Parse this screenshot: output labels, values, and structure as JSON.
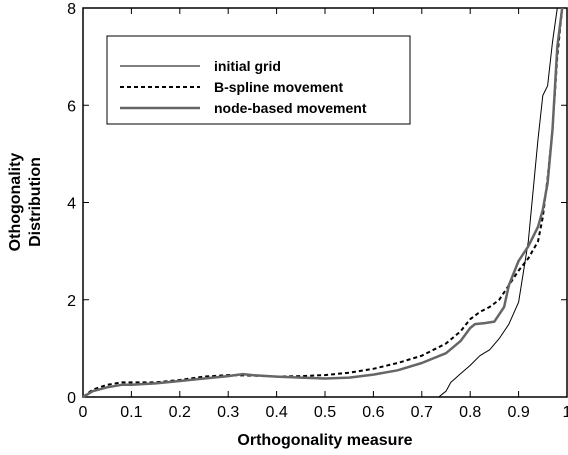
{
  "chart_data": {
    "type": "line",
    "title": "",
    "xlabel": "Orthogonality measure",
    "ylabel_lines": [
      "Othogonality",
      "Distribution"
    ],
    "xlim": [
      0,
      1
    ],
    "ylim": [
      0,
      8
    ],
    "x_ticks": [
      0,
      0.1,
      0.2,
      0.3,
      0.4,
      0.5,
      0.6,
      0.7,
      0.8,
      0.9,
      1
    ],
    "x_tick_labels": [
      "0",
      "0.1",
      "0.2",
      "0.3",
      "0.4",
      "0.5",
      "0.6",
      "0.7",
      "0.8",
      "0.9",
      "1"
    ],
    "y_ticks": [
      0,
      2,
      4,
      6,
      8
    ],
    "y_tick_labels": [
      "0",
      "2",
      "4",
      "6",
      "8"
    ],
    "grid": false,
    "legend_position": "top-left",
    "series": [
      {
        "name": "initial grid",
        "style": "thin-solid",
        "color": "#000000",
        "x": [
          0.735,
          0.75,
          0.76,
          0.78,
          0.8,
          0.82,
          0.84,
          0.86,
          0.88,
          0.9,
          0.92,
          0.94,
          0.95,
          0.96,
          0.97,
          0.98,
          0.99
        ],
        "y": [
          0.0,
          0.12,
          0.3,
          0.48,
          0.65,
          0.85,
          0.97,
          1.2,
          1.5,
          1.95,
          3.2,
          5.3,
          6.2,
          6.4,
          7.3,
          8.0,
          8.0
        ]
      },
      {
        "name": "B-spline movement",
        "style": "dashed",
        "color": "#000000",
        "x": [
          0,
          0.02,
          0.05,
          0.08,
          0.1,
          0.15,
          0.2,
          0.25,
          0.3,
          0.35,
          0.4,
          0.45,
          0.5,
          0.55,
          0.6,
          0.65,
          0.7,
          0.75,
          0.78,
          0.8,
          0.82,
          0.84,
          0.86,
          0.88,
          0.9,
          0.92,
          0.94,
          0.95,
          0.96,
          0.97,
          0.98,
          0.99
        ],
        "y": [
          0.0,
          0.15,
          0.25,
          0.3,
          0.3,
          0.3,
          0.35,
          0.42,
          0.45,
          0.44,
          0.42,
          0.43,
          0.45,
          0.5,
          0.58,
          0.7,
          0.85,
          1.1,
          1.35,
          1.6,
          1.75,
          1.85,
          2.0,
          2.3,
          2.6,
          2.85,
          3.2,
          3.7,
          4.5,
          5.5,
          7.0,
          8.0
        ]
      },
      {
        "name": "node-based movement",
        "style": "thick-solid-gray",
        "color": "#666666",
        "x": [
          0,
          0.02,
          0.05,
          0.08,
          0.1,
          0.15,
          0.2,
          0.25,
          0.3,
          0.33,
          0.35,
          0.4,
          0.45,
          0.5,
          0.55,
          0.6,
          0.65,
          0.7,
          0.75,
          0.78,
          0.8,
          0.81,
          0.83,
          0.85,
          0.87,
          0.88,
          0.9,
          0.92,
          0.94,
          0.95,
          0.96,
          0.97,
          0.98,
          0.99
        ],
        "y": [
          0.0,
          0.12,
          0.2,
          0.25,
          0.25,
          0.28,
          0.33,
          0.38,
          0.43,
          0.47,
          0.45,
          0.42,
          0.4,
          0.38,
          0.4,
          0.46,
          0.55,
          0.7,
          0.9,
          1.15,
          1.42,
          1.5,
          1.52,
          1.55,
          1.85,
          2.3,
          2.8,
          3.1,
          3.5,
          3.85,
          4.4,
          5.5,
          7.2,
          8.0
        ]
      }
    ]
  }
}
